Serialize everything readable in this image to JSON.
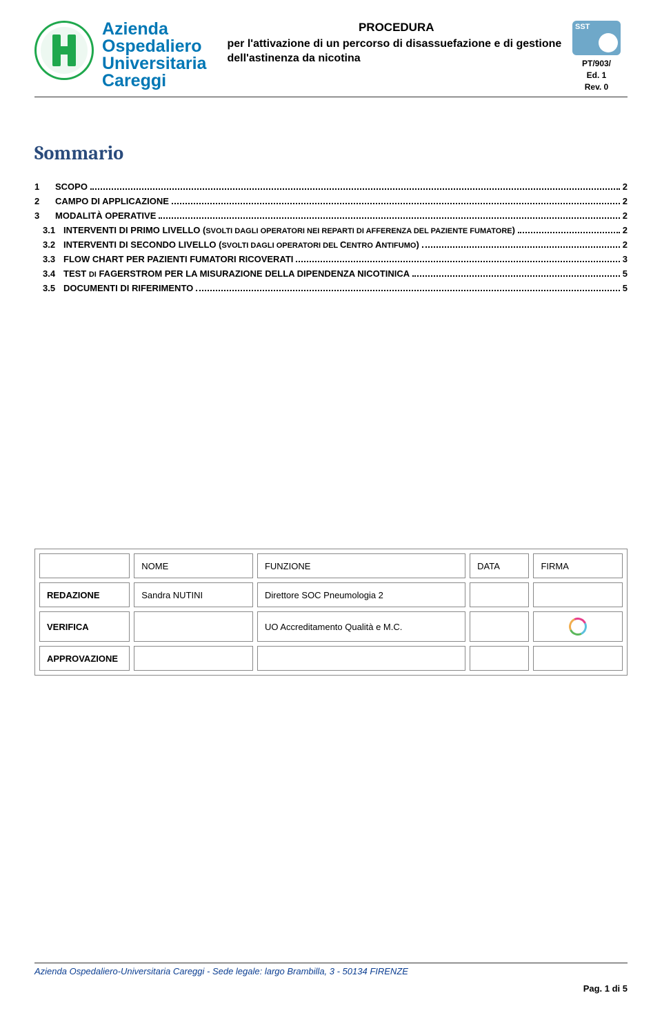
{
  "header": {
    "org_lines": [
      "Azienda",
      "Ospedaliero",
      "Universitaria",
      "Careggi"
    ],
    "title": "PROCEDURA",
    "subtitle": "per l'attivazione di un percorso di disassuefazione e di gestione dell'astinenza da nicotina",
    "code_line1": "PT/903/",
    "code_line2": "Ed. 1",
    "code_line3": "Rev. 0"
  },
  "sommario_title": "Sommario",
  "toc": [
    {
      "num": "1",
      "text": "SCOPO",
      "page": "2",
      "sub": false
    },
    {
      "num": "2",
      "text": "CAMPO DI APPLICAZIONE",
      "page": "2",
      "sub": false
    },
    {
      "num": "3",
      "text": "MODALITÀ OPERATIVE",
      "page": "2",
      "sub": false
    },
    {
      "num": "3.1",
      "text_main": "INTERVENTI DI PRIMO LIVELLO  (",
      "text_sc": "SVOLTI DAGLI OPERATORI NEI REPARTI DI AFFERENZA DEL PAZIENTE FUMATORE",
      "text_end": ")",
      "page": "2",
      "sub": true
    },
    {
      "num": "3.2",
      "text_main": "INTERVENTI DI SECONDO LIVELLO (",
      "text_sc": "SVOLTI DAGLI OPERATORI DEL ",
      "text_end2": "C",
      "text_sc2": "ENTRO ",
      "text_end3": "A",
      "text_sc3": "NTIFUMO",
      "text_close": ")",
      "page": "2",
      "sub": true
    },
    {
      "num": "3.3",
      "text": "FLOW CHART PER PAZIENTI FUMATORI RICOVERATI",
      "page": "3",
      "sub": true
    },
    {
      "num": "3.4",
      "text_main": "TEST ",
      "text_sc": "DI",
      "text_end": " FAGERSTROM PER LA MISURAZIONE DELLA DIPENDENZA NICOTINICA",
      "page": "5",
      "sub": true
    },
    {
      "num": "3.5",
      "text": "DOCUMENTI DI RIFERIMENTO",
      "page": "5",
      "sub": true
    }
  ],
  "sig_headers": {
    "name": "NOME",
    "func": "FUNZIONE",
    "date": "DATA",
    "sign": "FIRMA"
  },
  "sig_rows": {
    "redazione": {
      "label": "REDAZIONE",
      "name": "Sandra NUTINI",
      "func": "Direttore SOC Pneumologia 2"
    },
    "verifica": {
      "label": "VERIFICA",
      "name": "",
      "func": "UO Accreditamento Qualità e M.C."
    },
    "approva": {
      "label": "APPROVAZIONE",
      "name": "",
      "func": ""
    }
  },
  "footer": {
    "text": "Azienda Ospedaliero-Universitaria Careggi - Sede legale:  largo Brambilla, 3 -  50134  FIRENZE",
    "page": "Pag. 1 di 5"
  }
}
